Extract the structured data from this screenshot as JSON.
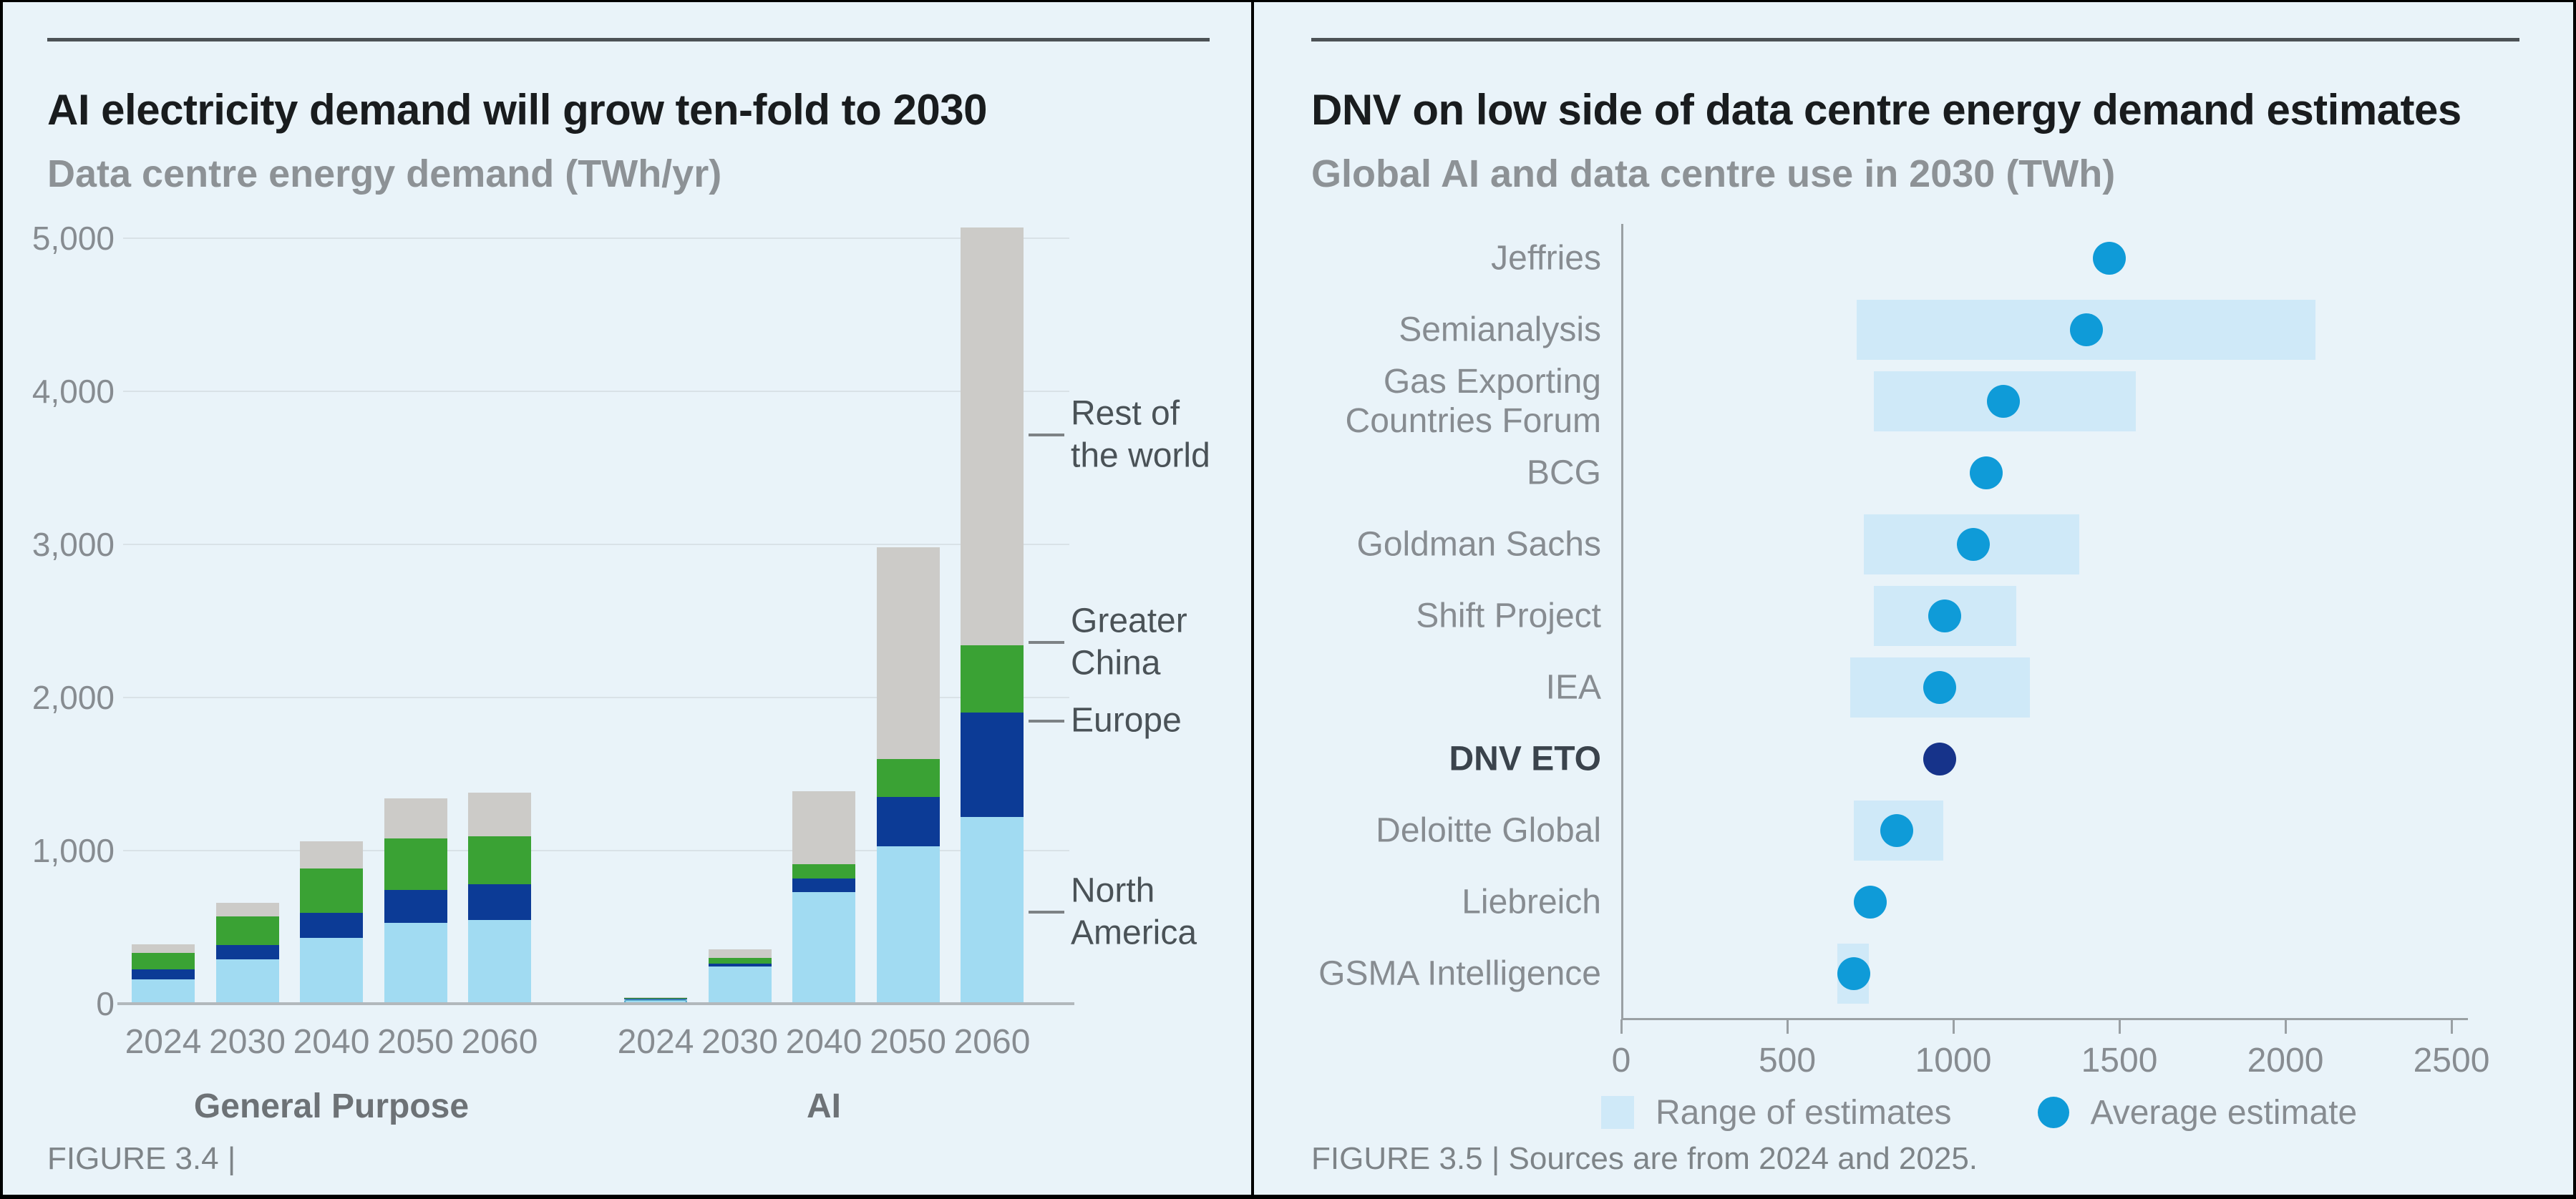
{
  "colors": {
    "background": "#e9f3f9",
    "frame_border": "#000000",
    "title_rule": "#4c5256",
    "title_text": "#191c1e",
    "subtitle_text": "#8d9296",
    "grid_line": "#d9e2e7",
    "axis_line": "#b2b8bc",
    "tick_label": "#878c91",
    "group_label": "#6d7276",
    "caption_text": "#7e8488",
    "legend_label": "#4a5257",
    "connector": "#7d8285",
    "row_label": "#878c91",
    "row_label_emphasis": "#3a434c",
    "range_fill": "#cfe9f8",
    "average_dot": "#0f9bd8",
    "dnv_dot": "#16338a",
    "north_america": "#a1dbf2",
    "europe": "#0c3b96",
    "greater_china": "#3aa234",
    "rest_of_world": "#cccbc8"
  },
  "chart_data": [
    {
      "type": "bar",
      "stacked": true,
      "title": "AI electricity demand will grow ten-fold to 2030",
      "subtitle": "Data centre energy demand (TWh/yr)",
      "caption": "FIGURE 3.4 |",
      "unit": "TWh/yr",
      "groups": [
        "General Purpose",
        "AI"
      ],
      "categories": [
        "2024",
        "2030",
        "2040",
        "2050",
        "2060"
      ],
      "ylim": [
        0,
        5000
      ],
      "yticks": [
        0,
        1000,
        2000,
        3000,
        4000,
        5000
      ],
      "ytick_labels": [
        "0",
        "1,000",
        "2,000",
        "3,000",
        "4,000",
        "5,000"
      ],
      "grid": true,
      "legend_position": "right",
      "series": [
        {
          "name": "North America",
          "display_label": "North\nAmerica",
          "color": "#a1dbf2",
          "values": {
            "General Purpose": [
              160,
              290,
              430,
              530,
              545
            ],
            "AI": [
              28,
              245,
              730,
              1030,
              1220
            ]
          }
        },
        {
          "name": "Europe",
          "display_label": "Europe",
          "color": "#0c3b96",
          "values": {
            "General Purpose": [
              65,
              95,
              165,
              215,
              235
            ],
            "AI": [
              3,
              15,
              90,
              320,
              680
            ]
          }
        },
        {
          "name": "Greater China",
          "display_label": "Greater\nChina",
          "color": "#3aa234",
          "values": {
            "General Purpose": [
              105,
              185,
              290,
              335,
              315
            ],
            "AI": [
              4,
              40,
              90,
              250,
              440
            ]
          }
        },
        {
          "name": "Rest of the world",
          "display_label": "Rest of\nthe world",
          "color": "#cccbc8",
          "values": {
            "General Purpose": [
              60,
              90,
              175,
              260,
              285
            ],
            "AI": [
              5,
              55,
              480,
              1380,
              2730
            ]
          }
        }
      ]
    },
    {
      "type": "range-dot",
      "title": "DNV on low side of data centre energy demand estimates",
      "subtitle": "Global AI and data centre use in 2030 (TWh)",
      "caption": "FIGURE 3.5 | Sources are from 2024 and 2025.",
      "unit": "TWh",
      "xlim": [
        0,
        2500
      ],
      "xticks": [
        0,
        500,
        1000,
        1500,
        2000,
        2500
      ],
      "xtick_labels": [
        "0",
        "500",
        "1000",
        "1500",
        "2000",
        "2500"
      ],
      "rows": [
        {
          "label": "Jeffries",
          "avg": 1470,
          "range": null
        },
        {
          "label": "Semianalysis",
          "avg": 1400,
          "range": [
            710,
            2090
          ]
        },
        {
          "label": "Gas Exporting Countries Forum",
          "avg": 1150,
          "range": [
            760,
            1550
          ]
        },
        {
          "label": "BCG",
          "avg": 1100,
          "range": null
        },
        {
          "label": "Goldman Sachs",
          "avg": 1060,
          "range": [
            730,
            1380
          ]
        },
        {
          "label": "Shift Project",
          "avg": 975,
          "range": [
            760,
            1190
          ]
        },
        {
          "label": "IEA",
          "avg": 960,
          "range": [
            690,
            1230
          ]
        },
        {
          "label": "DNV ETO",
          "avg": 960,
          "range": null,
          "emphasis": true
        },
        {
          "label": "Deloitte Global",
          "avg": 830,
          "range": [
            700,
            970
          ]
        },
        {
          "label": "Liebreich",
          "avg": 750,
          "range": null
        },
        {
          "label": "GSMA Intelligence",
          "avg": 700,
          "range": [
            650,
            745
          ]
        }
      ],
      "legend": [
        {
          "label": "Range of estimates",
          "marker": "range"
        },
        {
          "label": "Average estimate",
          "marker": "dot"
        }
      ]
    }
  ]
}
